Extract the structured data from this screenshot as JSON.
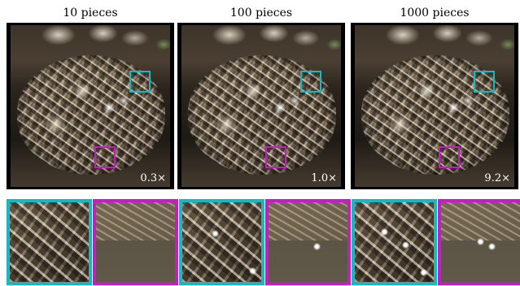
{
  "columns": [
    {
      "title": "10 pieces",
      "speed": "0.3×"
    },
    {
      "title": "100 pieces",
      "speed": "1.0×"
    },
    {
      "title": "1000 pieces",
      "speed": "9.2×"
    }
  ],
  "colors": {
    "cyan_box": "#18b8c2",
    "magenta_box": "#c21ec2",
    "background": "#ffffff"
  }
}
